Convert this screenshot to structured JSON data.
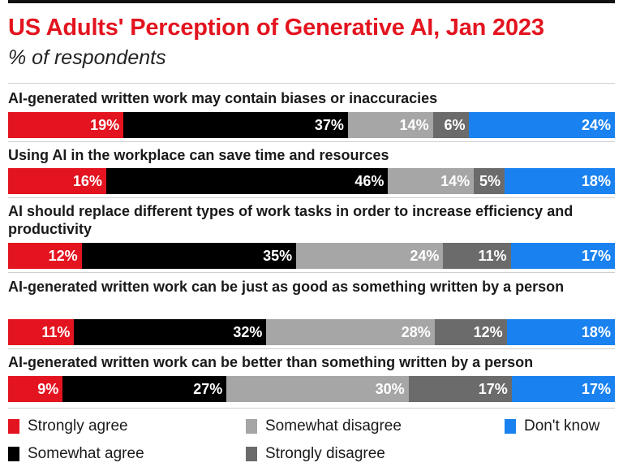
{
  "title": "US Adults' Perception of Generative AI, Jan 2023",
  "subtitle": "% of respondents",
  "chart_data": {
    "type": "bar",
    "orientation": "horizontal-stacked-100",
    "categories": [
      "AI-generated written work may contain biases or inaccuracies",
      "Using AI in the workplace can save time and resources",
      "AI should replace different types of work tasks in order to increase efficiency and productivity",
      "AI-generated written work can be just as good as something written by a person",
      "AI-generated written work can be better than something written by a person"
    ],
    "series": [
      {
        "name": "Strongly agree",
        "color": "#e3141f",
        "values": [
          19,
          16,
          12,
          11,
          9
        ]
      },
      {
        "name": "Somewhat agree",
        "color": "#000000",
        "values": [
          37,
          46,
          35,
          32,
          27
        ]
      },
      {
        "name": "Somewhat disagree",
        "color": "#a6a6a6",
        "values": [
          14,
          14,
          24,
          28,
          30
        ]
      },
      {
        "name": "Strongly disagree",
        "color": "#6b6b6b",
        "values": [
          6,
          5,
          11,
          12,
          17
        ]
      },
      {
        "name": "Don't know",
        "color": "#1a82f0",
        "values": [
          24,
          18,
          17,
          18,
          17
        ]
      }
    ],
    "value_suffix": "%",
    "legend_position": "bottom"
  }
}
